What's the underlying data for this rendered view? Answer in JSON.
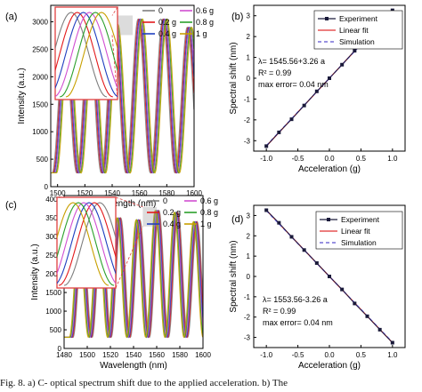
{
  "caption": "Fig. 8. a) C- optical spectrum shift due to the applied acceleration. b) The",
  "colors": {
    "spectra": [
      "#7f7f7f",
      "#e31a1c",
      "#1f3fbf",
      "#d14fd1",
      "#2ca02c",
      "#c8a000"
    ],
    "experiment": "#1a1a3a",
    "fit": "#e03030",
    "simulation": "#5a4fcf",
    "zoom_box": "#e04040"
  },
  "chart_data": [
    {
      "id": "a",
      "panel_label": "(a)",
      "type": "line",
      "xlabel": "Wavelength (nm)",
      "ylabel": "Intensity (a.u.)",
      "xlim": [
        1495,
        1600
      ],
      "ylim": [
        0,
        3300
      ],
      "x_ticks": [
        "1500",
        "1520",
        "1540",
        "1560",
        "1580",
        "1600"
      ],
      "y_ticks": [
        "0",
        "500",
        "1000",
        "1500",
        "2000",
        "2500",
        "3000"
      ],
      "legend": [
        "0",
        "0.2 g",
        "0.4 g",
        "0.6 g",
        "0.8 g",
        "1 g"
      ],
      "spectrum": {
        "period_nm": 18.0,
        "first_peak_nm": 1505.0,
        "shift_nm_per_g": 3.26,
        "accelerations_g": [
          0,
          0.2,
          0.4,
          0.6,
          0.8,
          1.0
        ]
      },
      "peaks": [
        {
          "x": 1505,
          "y": 2700
        },
        {
          "x": 1523,
          "y": 2800
        },
        {
          "x": 1541,
          "y": 2950
        },
        {
          "x": 1559,
          "y": 3050
        },
        {
          "x": 1577,
          "y": 3050
        },
        {
          "x": 1595,
          "y": 2900
        }
      ],
      "troughs_y": 250,
      "zoom_region_x": [
        1540,
        1555
      ]
    },
    {
      "id": "b",
      "panel_label": "(b)",
      "type": "scatter",
      "xlabel": "Acceleration (g)",
      "ylabel": "Spectral shift (nm)",
      "xlim": [
        -1.2,
        1.2
      ],
      "ylim": [
        -3.5,
        3.5
      ],
      "x_ticks": [
        "-1.0",
        "-0.5",
        "0.0",
        "0.5",
        "1.0"
      ],
      "x_tick_values": [
        -1.0,
        -0.5,
        0.0,
        0.5,
        1.0
      ],
      "y_ticks": [
        "-3",
        "-2",
        "-1",
        "0",
        "1",
        "2",
        "3"
      ],
      "y_tick_values": [
        -3,
        -2,
        -1,
        0,
        1,
        2,
        3
      ],
      "legend": [
        "Experiment",
        "Linear fit",
        "Simulation"
      ],
      "annotation": [
        "λ= 1545.56+3.26 a",
        "R² = 0.99",
        "max error= 0.04 nm"
      ],
      "series": [
        {
          "name": "Experiment",
          "x": [
            -1.0,
            -0.8,
            -0.6,
            -0.4,
            -0.2,
            0.0,
            0.2,
            0.4,
            0.6,
            0.8,
            1.0
          ],
          "y": [
            -3.26,
            -2.6,
            -1.97,
            -1.31,
            -0.63,
            0.0,
            0.65,
            1.32,
            1.95,
            2.6,
            3.26
          ]
        },
        {
          "name": "Linear fit",
          "x": [
            -1.0,
            1.0
          ],
          "y": [
            -3.26,
            3.26
          ]
        },
        {
          "name": "Simulation",
          "x": [
            -1.0,
            1.0
          ],
          "y": [
            -3.24,
            3.24
          ]
        }
      ]
    },
    {
      "id": "c",
      "panel_label": "(c)",
      "type": "line",
      "xlabel": "Wavelength (nm)",
      "ylabel": "Intensity (a.u.)",
      "xlim": [
        1480,
        1600
      ],
      "ylim": [
        0,
        4100
      ],
      "x_ticks": [
        "1480",
        "1500",
        "1520",
        "1540",
        "1560",
        "1580",
        "1600"
      ],
      "y_ticks": [
        "0",
        "500",
        "1000",
        "1500",
        "2000",
        "2500",
        "3000",
        "3500",
        "4000"
      ],
      "legend": [
        "0",
        "0.2 g",
        "0.4 g",
        "0.6 g",
        "0.8 g",
        "1 g"
      ],
      "spectrum": {
        "period_nm": 16.5,
        "first_peak_nm": 1496.0,
        "shift_nm_per_g": -3.26,
        "accelerations_g": [
          0,
          0.2,
          0.4,
          0.6,
          0.8,
          1.0
        ]
      },
      "peaks": [
        {
          "x": 1496,
          "y": 3000
        },
        {
          "x": 1512.5,
          "y": 3300
        },
        {
          "x": 1529,
          "y": 3500
        },
        {
          "x": 1545.5,
          "y": 3450
        },
        {
          "x": 1562,
          "y": 3700
        },
        {
          "x": 1578.5,
          "y": 3650
        },
        {
          "x": 1595,
          "y": 3400
        }
      ],
      "troughs_y": 300,
      "zoom_region_x": [
        1548,
        1560
      ]
    },
    {
      "id": "d",
      "panel_label": "(d)",
      "type": "scatter",
      "xlabel": "Acceleration (g)",
      "ylabel": "Spectral shift (nm)",
      "xlim": [
        -1.2,
        1.2
      ],
      "ylim": [
        -3.5,
        3.5
      ],
      "x_ticks": [
        "-1.0",
        "-0.5",
        "0.0",
        "0.5",
        "1.0"
      ],
      "x_tick_values": [
        -1.0,
        -0.5,
        0.0,
        0.5,
        1.0
      ],
      "y_ticks": [
        "-3",
        "-2",
        "-1",
        "0",
        "1",
        "2",
        "3"
      ],
      "y_tick_values": [
        -3,
        -2,
        -1,
        0,
        1,
        2,
        3
      ],
      "legend": [
        "Experiment",
        "Linear fit",
        "Simulation"
      ],
      "annotation": [
        "λ= 1553.56-3.26 a",
        "R² = 0.99",
        "max error= 0.04 nm"
      ],
      "series": [
        {
          "name": "Experiment",
          "x": [
            -1.0,
            -0.8,
            -0.6,
            -0.4,
            -0.2,
            0.0,
            0.2,
            0.4,
            0.6,
            0.8,
            1.0
          ],
          "y": [
            3.26,
            2.64,
            1.95,
            1.3,
            0.66,
            0.0,
            -0.64,
            -1.33,
            -1.96,
            -2.62,
            -3.26
          ]
        },
        {
          "name": "Linear fit",
          "x": [
            -1.0,
            1.0
          ],
          "y": [
            3.26,
            -3.26
          ]
        },
        {
          "name": "Simulation",
          "x": [
            -1.0,
            1.0
          ],
          "y": [
            3.24,
            -3.24
          ]
        }
      ]
    }
  ]
}
